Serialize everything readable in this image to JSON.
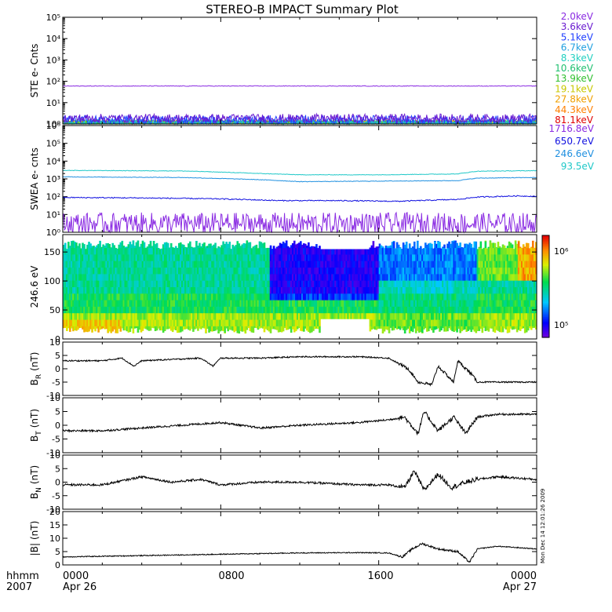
{
  "title": "STEREO-B IMPACT Summary Plot",
  "footer": {
    "row_label": "hhmm",
    "year": "2007",
    "tick_labels": [
      "0000",
      "0800",
      "1600",
      "0000"
    ],
    "date_labels": [
      "Apr 26",
      "Apr 27"
    ],
    "stamp": "Mon Dec 14 12:01:26 2009"
  },
  "colors": {
    "ste_2.0": "#8a2be2",
    "ste_3.6": "#6a1bd0",
    "ste_5.1": "#2040ff",
    "ste_6.7": "#20a0e0",
    "ste_8.3": "#20d0c0",
    "ste_10.6": "#20c070",
    "ste_13.9": "#30c030",
    "ste_19.1": "#c8c800",
    "ste_27.8": "#f0a000",
    "ste_44.3": "#ff8000",
    "ste_81.1": "#e00000",
    "swea_1716.8": "#8a2be2",
    "swea_650.7": "#1010e0",
    "swea_246.6": "#2090e0",
    "swea_93.5": "#20c8c8"
  },
  "chart_data": [
    {
      "id": "ste",
      "type": "line",
      "ylabel": "STE e- Cnts",
      "yscale": "log",
      "ylim": [
        1,
        100000
      ],
      "y_tick_labels": [
        "10⁰",
        "10¹",
        "10²",
        "10³",
        "10⁴",
        "10⁵"
      ],
      "x_range_hours": [
        0,
        24
      ],
      "series": [
        {
          "name": "2.0keV",
          "level": 60,
          "jitter": 0.03
        },
        {
          "name": "3.6keV",
          "level": 1.5,
          "jitter": 0.35
        },
        {
          "name": "5.1keV",
          "level": 1.3,
          "jitter": 0.35
        },
        {
          "name": "6.7keV",
          "level": 1.1,
          "jitter": 0.2
        },
        {
          "name": "8.3keV",
          "level": 1.1,
          "jitter": 0.2
        },
        {
          "name": "10.6keV",
          "level": 1.05,
          "jitter": 0.15
        },
        {
          "name": "13.9keV",
          "level": 1.05,
          "jitter": 0.15
        },
        {
          "name": "19.1keV",
          "level": 1.05,
          "jitter": 0.15
        },
        {
          "name": "27.8keV",
          "level": 1.1,
          "jitter": 0.18
        },
        {
          "name": "44.3keV",
          "level": 1.1,
          "jitter": 0.18
        },
        {
          "name": "81.1keV",
          "level": 1.0,
          "jitter": 0.05
        }
      ]
    },
    {
      "id": "swea",
      "type": "line",
      "ylabel": "SWEA e- cnts",
      "yscale": "log",
      "ylim": [
        1,
        1000000
      ],
      "y_tick_labels": [
        "10⁰",
        "10¹",
        "10²",
        "10³",
        "10⁴",
        "10⁵",
        "10⁶"
      ],
      "x_range_hours": [
        0,
        24
      ],
      "series": [
        {
          "name": "1716.8eV",
          "profile": [
            [
              0,
              3
            ],
            [
              24,
              3
            ]
          ],
          "jitter": 0.45
        },
        {
          "name": "650.7eV",
          "profile": [
            [
              0,
              90
            ],
            [
              4,
              85
            ],
            [
              8,
              75
            ],
            [
              11,
              60
            ],
            [
              14,
              60
            ],
            [
              17,
              55
            ],
            [
              20,
              70
            ],
            [
              21,
              95
            ],
            [
              23,
              110
            ],
            [
              24,
              105
            ]
          ],
          "jitter": 0.06
        },
        {
          "name": "246.6eV",
          "profile": [
            [
              0,
              1300
            ],
            [
              6,
              1200
            ],
            [
              10,
              900
            ],
            [
              12,
              700
            ],
            [
              16,
              750
            ],
            [
              20,
              800
            ],
            [
              21,
              1100
            ],
            [
              24,
              1200
            ]
          ],
          "jitter": 0.03
        },
        {
          "name": "93.5eV",
          "profile": [
            [
              0,
              3000
            ],
            [
              6,
              2800
            ],
            [
              10,
              2000
            ],
            [
              12,
              1700
            ],
            [
              16,
              1700
            ],
            [
              20,
              1900
            ],
            [
              21,
              2700
            ],
            [
              24,
              2900
            ]
          ],
          "jitter": 0.03
        }
      ]
    },
    {
      "id": "pad",
      "type": "heatmap",
      "ylabel": "246.6 eV",
      "ylim": [
        0,
        180
      ],
      "y_tick_labels": [
        "0",
        "50",
        "100",
        "150"
      ],
      "x_range_hours": [
        0,
        24
      ],
      "colorbar_tick_labels": [
        "10⁶",
        "10⁵"
      ]
    },
    {
      "id": "br",
      "type": "line",
      "ylabel": "B",
      "ylabel_sub": "R",
      "yunit": "(nT)",
      "ylim": [
        -10,
        10
      ],
      "y_tick_labels": [
        "-10",
        "-5",
        "0",
        "5",
        "10"
      ],
      "x_range_hours": [
        0,
        24
      ],
      "profile": [
        [
          0,
          3
        ],
        [
          2,
          3
        ],
        [
          3,
          4
        ],
        [
          3.6,
          1
        ],
        [
          4,
          3
        ],
        [
          7,
          4
        ],
        [
          7.6,
          1
        ],
        [
          8,
          4
        ],
        [
          10,
          4
        ],
        [
          12,
          4.5
        ],
        [
          15,
          4.5
        ],
        [
          16.5,
          4
        ],
        [
          17.5,
          0
        ],
        [
          18,
          -5
        ],
        [
          18.7,
          -6
        ],
        [
          19,
          1
        ],
        [
          19.8,
          -5
        ],
        [
          20,
          3
        ],
        [
          20.7,
          -2
        ],
        [
          21,
          -5
        ],
        [
          22,
          -5
        ],
        [
          23,
          -5
        ],
        [
          24,
          -5
        ]
      ],
      "noise": 0.5
    },
    {
      "id": "bt",
      "type": "line",
      "ylabel": "B",
      "ylabel_sub": "T",
      "yunit": "(nT)",
      "ylim": [
        -10,
        10
      ],
      "y_tick_labels": [
        "-10",
        "-5",
        "0",
        "5",
        "10"
      ],
      "x_range_hours": [
        0,
        24
      ],
      "profile": [
        [
          0,
          -2
        ],
        [
          2,
          -2
        ],
        [
          4,
          -1
        ],
        [
          6,
          0
        ],
        [
          8,
          1
        ],
        [
          10,
          -1
        ],
        [
          12,
          0
        ],
        [
          15,
          1
        ],
        [
          16.5,
          2
        ],
        [
          17.3,
          3
        ],
        [
          18,
          -3
        ],
        [
          18.3,
          5
        ],
        [
          19,
          -2
        ],
        [
          19.8,
          3
        ],
        [
          20.4,
          -3
        ],
        [
          21,
          3
        ],
        [
          22,
          4
        ],
        [
          23,
          4
        ],
        [
          24,
          4
        ]
      ],
      "noise": 0.7
    },
    {
      "id": "bn",
      "type": "line",
      "ylabel": "B",
      "ylabel_sub": "N",
      "yunit": "(nT)",
      "ylim": [
        -10,
        10
      ],
      "y_tick_labels": [
        "-10",
        "-5",
        "0",
        "5",
        "10"
      ],
      "x_range_hours": [
        0,
        24
      ],
      "profile": [
        [
          0,
          -1
        ],
        [
          2,
          -1
        ],
        [
          4,
          2
        ],
        [
          5.5,
          0
        ],
        [
          7,
          1
        ],
        [
          8,
          -1
        ],
        [
          10,
          0
        ],
        [
          12,
          0
        ],
        [
          15,
          -1
        ],
        [
          16.5,
          -1
        ],
        [
          17.3,
          -2
        ],
        [
          17.8,
          4
        ],
        [
          18.3,
          -3
        ],
        [
          19,
          3
        ],
        [
          19.7,
          -2
        ],
        [
          20.4,
          0
        ],
        [
          21,
          1
        ],
        [
          22,
          2
        ],
        [
          24,
          1
        ]
      ],
      "noise": 0.8
    },
    {
      "id": "bmag",
      "type": "line",
      "ylabel": "|B|",
      "yunit": "(nT)",
      "ylim": [
        0,
        20
      ],
      "y_tick_labels": [
        "0",
        "5",
        "10",
        "15",
        "20"
      ],
      "x_range_hours": [
        0,
        24
      ],
      "profile": [
        [
          0,
          3
        ],
        [
          4,
          3.5
        ],
        [
          8,
          4
        ],
        [
          12,
          4.5
        ],
        [
          15,
          4.6
        ],
        [
          16.5,
          4.5
        ],
        [
          17.2,
          3
        ],
        [
          17.7,
          6
        ],
        [
          18.2,
          8
        ],
        [
          19,
          6
        ],
        [
          20,
          5
        ],
        [
          20.6,
          1
        ],
        [
          21,
          6
        ],
        [
          22,
          7
        ],
        [
          24,
          6
        ]
      ],
      "noise": 0.35
    }
  ]
}
